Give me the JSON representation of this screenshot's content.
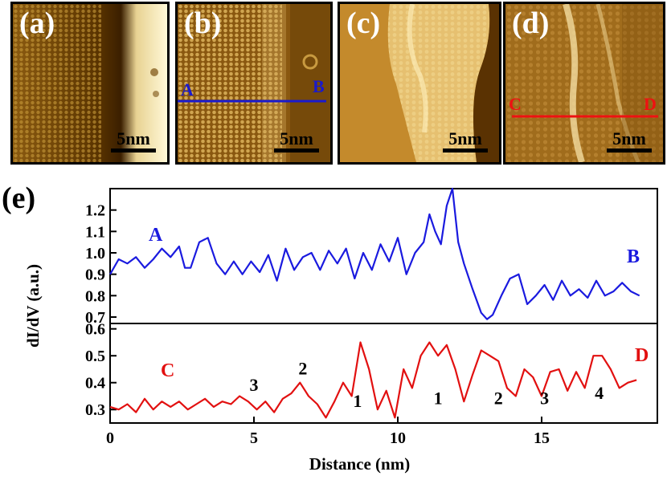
{
  "panels": [
    {
      "label": "(a)",
      "scale_label": "5nm",
      "border_color": "#f5ee55",
      "kind": "step"
    },
    {
      "label": "(b)",
      "scale_label": "5nm",
      "border_color": "#f5ee55",
      "kind": "lattice",
      "line": {
        "start": "A",
        "end": "B",
        "color": "#1a1acc"
      }
    },
    {
      "label": "(c)",
      "scale_label": "5nm",
      "border_color": "#e040d8",
      "kind": "terrace"
    },
    {
      "label": "(d)",
      "scale_label": "5nm",
      "border_color": "#e040d8",
      "kind": "rough",
      "line": {
        "start": "C",
        "end": "D",
        "color": "#ee1111"
      }
    }
  ],
  "figure_label": "(e)",
  "colors": {
    "blue": "#1a1adf",
    "red": "#e21010",
    "black": "#000000"
  },
  "chart_data": {
    "type": "line",
    "xlabel": "Distance (nm)",
    "ylabel": "dI/dV (a.u.)",
    "xlim": [
      -0.5,
      19.0
    ],
    "xticks": [
      0,
      5,
      10,
      15
    ],
    "top_panel": {
      "ylim": [
        0.67,
        1.3
      ],
      "yticks": [
        "0.7",
        "0.8",
        "0.9",
        "1.0",
        "1.1",
        "1.2"
      ],
      "ytick_values": [
        0.7,
        0.8,
        0.9,
        1.0,
        1.1,
        1.2
      ],
      "series": {
        "name": "A-B",
        "start_label": "A",
        "end_label": "B",
        "color": "#1a1adf",
        "x": [
          0,
          0.3,
          0.6,
          0.9,
          1.2,
          1.5,
          1.8,
          2.1,
          2.4,
          2.6,
          2.8,
          3.1,
          3.4,
          3.7,
          4.0,
          4.3,
          4.6,
          4.9,
          5.2,
          5.5,
          5.8,
          6.1,
          6.4,
          6.7,
          7.0,
          7.3,
          7.6,
          7.9,
          8.2,
          8.5,
          8.8,
          9.1,
          9.4,
          9.7,
          10.0,
          10.3,
          10.6,
          10.9,
          11.1,
          11.3,
          11.5,
          11.7,
          11.9,
          12.1,
          12.3,
          12.6,
          12.9,
          13.1,
          13.3,
          13.6,
          13.9,
          14.2,
          14.5,
          14.8,
          15.1,
          15.4,
          15.7,
          16.0,
          16.3,
          16.6,
          16.9,
          17.2,
          17.5,
          17.8,
          18.1,
          18.4
        ],
        "values": [
          0.9,
          0.97,
          0.95,
          0.98,
          0.93,
          0.97,
          1.02,
          0.98,
          1.03,
          0.93,
          0.93,
          1.05,
          1.07,
          0.95,
          0.9,
          0.96,
          0.9,
          0.96,
          0.91,
          0.99,
          0.87,
          1.02,
          0.92,
          0.98,
          1.0,
          0.92,
          1.01,
          0.95,
          1.02,
          0.88,
          1.0,
          0.92,
          1.04,
          0.96,
          1.07,
          0.9,
          1.0,
          1.05,
          1.18,
          1.1,
          1.04,
          1.22,
          1.31,
          1.05,
          0.95,
          0.83,
          0.72,
          0.69,
          0.71,
          0.8,
          0.88,
          0.9,
          0.76,
          0.8,
          0.85,
          0.78,
          0.87,
          0.8,
          0.83,
          0.79,
          0.87,
          0.8,
          0.82,
          0.86,
          0.82,
          0.8
        ]
      }
    },
    "bottom_panel": {
      "ylim": [
        0.25,
        0.62
      ],
      "yticks": [
        "0.3",
        "0.4",
        "0.5",
        "0.6"
      ],
      "ytick_values": [
        0.3,
        0.4,
        0.5,
        0.6
      ],
      "series": {
        "name": "C-D",
        "start_label": "C",
        "end_label": "D",
        "color": "#e21010",
        "x": [
          0,
          0.3,
          0.6,
          0.9,
          1.2,
          1.5,
          1.8,
          2.1,
          2.4,
          2.7,
          3.0,
          3.3,
          3.6,
          3.9,
          4.2,
          4.5,
          4.8,
          5.1,
          5.4,
          5.7,
          6.0,
          6.3,
          6.6,
          6.9,
          7.2,
          7.5,
          7.8,
          8.1,
          8.4,
          8.7,
          9.0,
          9.3,
          9.6,
          9.9,
          10.2,
          10.5,
          10.8,
          11.1,
          11.4,
          11.7,
          12.0,
          12.3,
          12.6,
          12.9,
          13.2,
          13.5,
          13.8,
          14.1,
          14.4,
          14.7,
          15.0,
          15.3,
          15.6,
          15.9,
          16.2,
          16.5,
          16.8,
          17.1,
          17.4,
          17.7,
          18.0,
          18.3
        ],
        "values": [
          0.31,
          0.3,
          0.32,
          0.29,
          0.34,
          0.3,
          0.33,
          0.31,
          0.33,
          0.3,
          0.32,
          0.34,
          0.31,
          0.33,
          0.32,
          0.35,
          0.33,
          0.3,
          0.33,
          0.29,
          0.34,
          0.36,
          0.4,
          0.35,
          0.32,
          0.27,
          0.33,
          0.4,
          0.35,
          0.55,
          0.45,
          0.3,
          0.37,
          0.27,
          0.45,
          0.38,
          0.5,
          0.55,
          0.5,
          0.54,
          0.45,
          0.33,
          0.43,
          0.52,
          0.5,
          0.48,
          0.38,
          0.35,
          0.45,
          0.42,
          0.35,
          0.44,
          0.45,
          0.37,
          0.44,
          0.38,
          0.5,
          0.5,
          0.45,
          0.38,
          0.4,
          0.41
        ]
      },
      "annotations": [
        {
          "text": "3",
          "x": 5.0,
          "y": 0.37
        },
        {
          "text": "2",
          "x": 6.7,
          "y": 0.43
        },
        {
          "text": "1",
          "x": 8.6,
          "y": 0.31
        },
        {
          "text": "1",
          "x": 11.4,
          "y": 0.32
        },
        {
          "text": "2",
          "x": 13.5,
          "y": 0.32
        },
        {
          "text": "3",
          "x": 15.1,
          "y": 0.32
        },
        {
          "text": "4",
          "x": 17.0,
          "y": 0.34
        }
      ]
    }
  }
}
